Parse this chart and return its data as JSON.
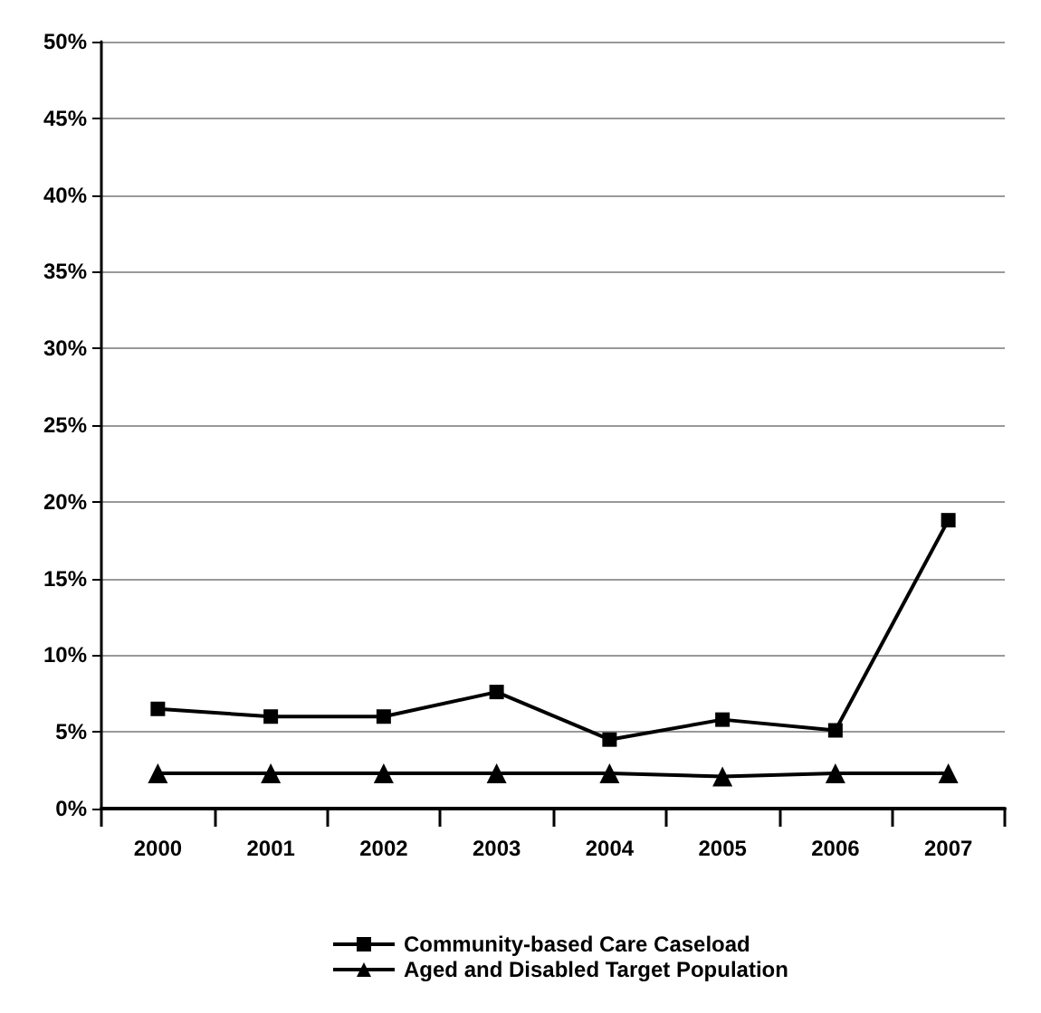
{
  "chart_data": {
    "type": "line",
    "categories": [
      "2000",
      "2001",
      "2002",
      "2003",
      "2004",
      "2005",
      "2006",
      "2007"
    ],
    "series": [
      {
        "name": "Community-based Care Caseload",
        "color": "#000000",
        "marker": "square",
        "values": [
          6.5,
          6.0,
          6.0,
          7.6,
          4.5,
          5.8,
          5.1,
          18.8
        ]
      },
      {
        "name": "Aged and Disabled Target Population",
        "color": "#000000",
        "marker": "triangle",
        "values": [
          2.3,
          2.3,
          2.3,
          2.3,
          2.3,
          2.1,
          2.3,
          2.3
        ]
      }
    ],
    "ylim": [
      0,
      50
    ],
    "yticks": [
      {
        "value": 0,
        "label": "0%"
      },
      {
        "value": 5,
        "label": "5%"
      },
      {
        "value": 10,
        "label": "10%"
      },
      {
        "value": 15,
        "label": "15%"
      },
      {
        "value": 20,
        "label": "20%"
      },
      {
        "value": 25,
        "label": "25%"
      },
      {
        "value": 30,
        "label": "30%"
      },
      {
        "value": 35,
        "label": "35%"
      },
      {
        "value": 40,
        "label": "40%"
      },
      {
        "value": 45,
        "label": "45%"
      },
      {
        "value": 50,
        "label": "50%"
      }
    ],
    "grid": "y",
    "legend": "bottom",
    "line_style": "solid"
  }
}
